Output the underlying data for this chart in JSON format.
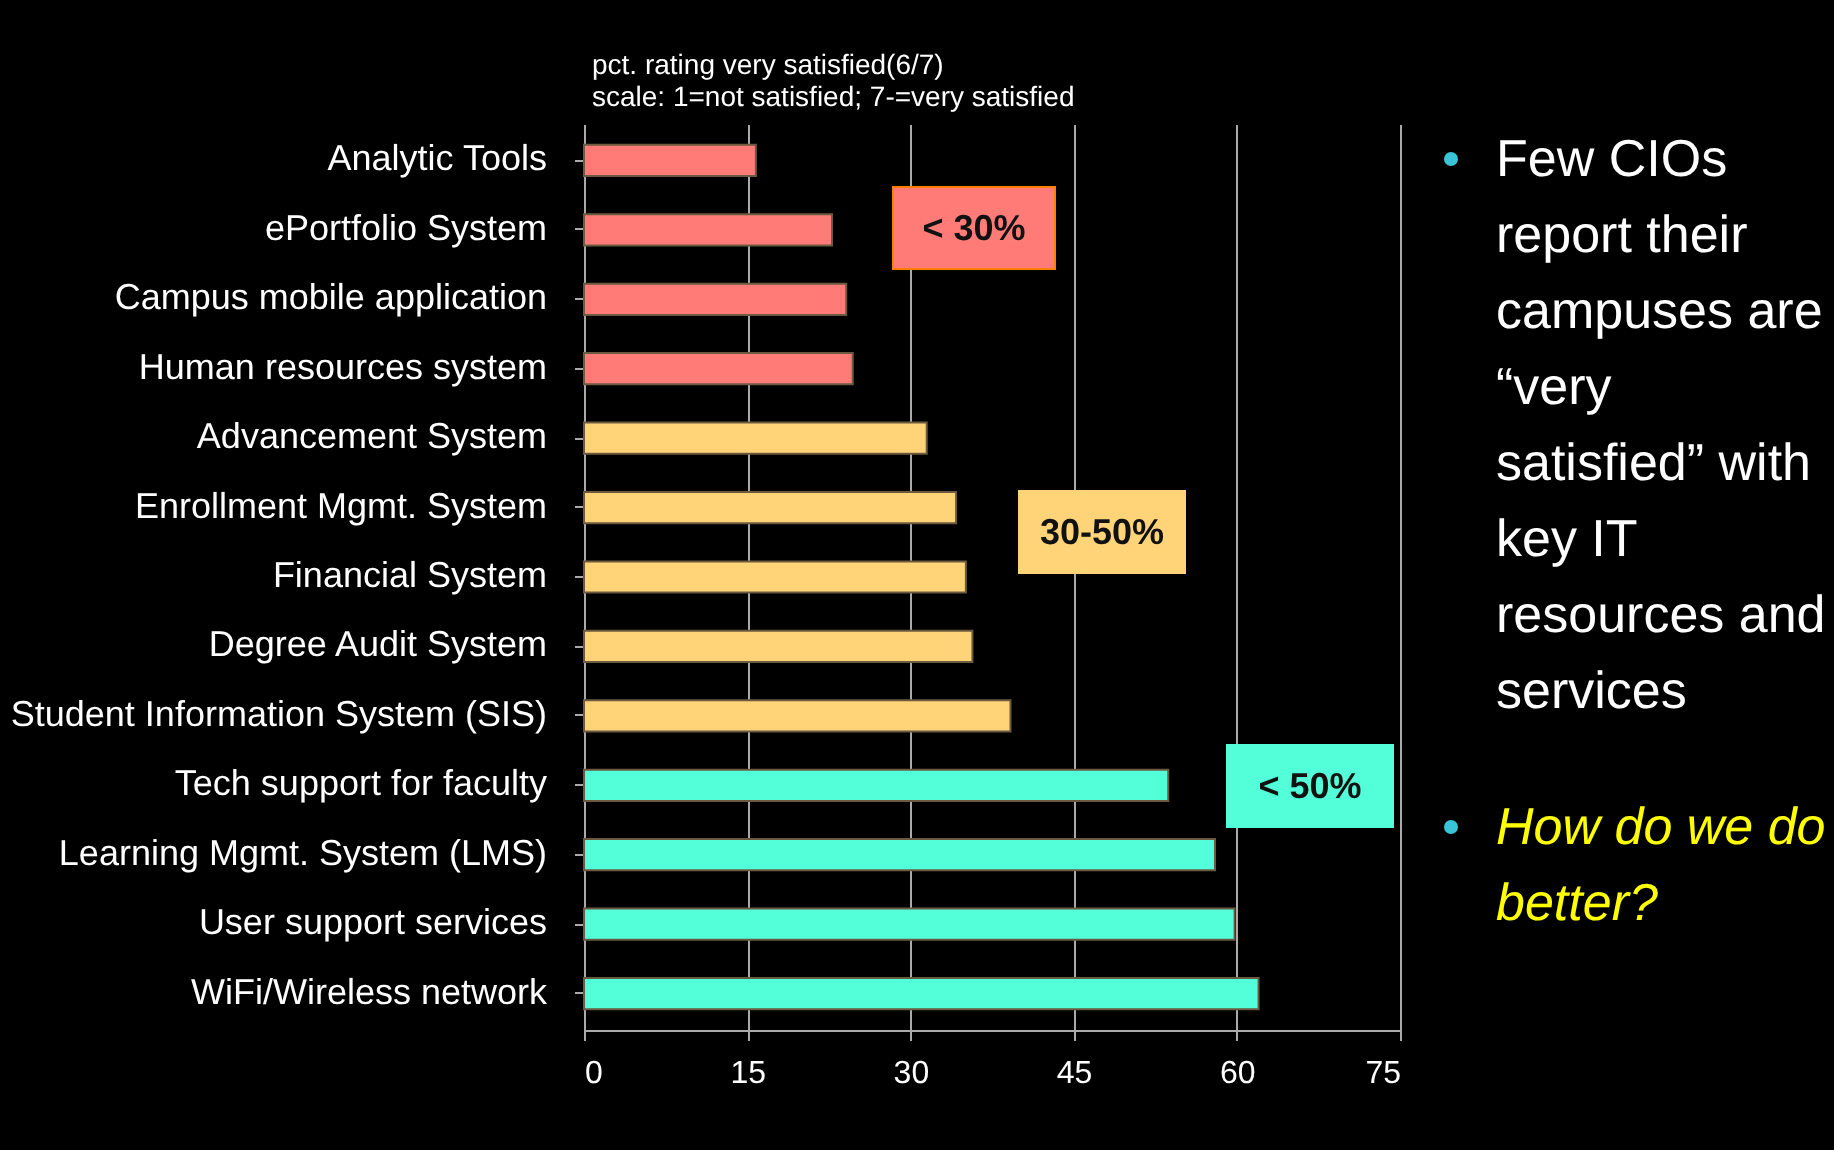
{
  "chart_data": {
    "type": "bar",
    "orientation": "horizontal",
    "title": "pct. rating very satisfied(6/7)",
    "subtitle": "scale: 1=not satisfied; 7-=very satisfied",
    "categories": [
      "Analytic Tools",
      "ePortfolio System",
      "Campus mobile application",
      "Human resources system",
      "Advancement System",
      "Enrollment Mgmt. System",
      "Financial System",
      "Degree Audit System",
      "Student Information System (SIS)",
      "Tech support for faculty",
      "Learning Mgmt. System (LMS)",
      "User support services",
      "WiFi/Wireless network"
    ],
    "values": [
      15.8,
      22.8,
      24.1,
      24.7,
      31.5,
      34.2,
      35.1,
      35.7,
      39.2,
      53.7,
      58,
      59.8,
      62
    ],
    "colors": [
      "#ff7b78",
      "#ff7b78",
      "#ff7b78",
      "#ff7b78",
      "#ffd478",
      "#ffd478",
      "#ffd478",
      "#ffd478",
      "#ffd478",
      "#52ffd8",
      "#52ffd8",
      "#52ffd8",
      "#52ffd8"
    ],
    "xlim": [
      0,
      75
    ],
    "xticks": [
      0,
      15,
      30,
      45,
      60,
      75
    ],
    "grid": "x",
    "annotations": [
      "< 30%",
      "30-50%",
      "< 50%",
      "Few CIOs report their campuses are “very satisfied” with key IT resources and services",
      "How do we do better?"
    ]
  }
}
